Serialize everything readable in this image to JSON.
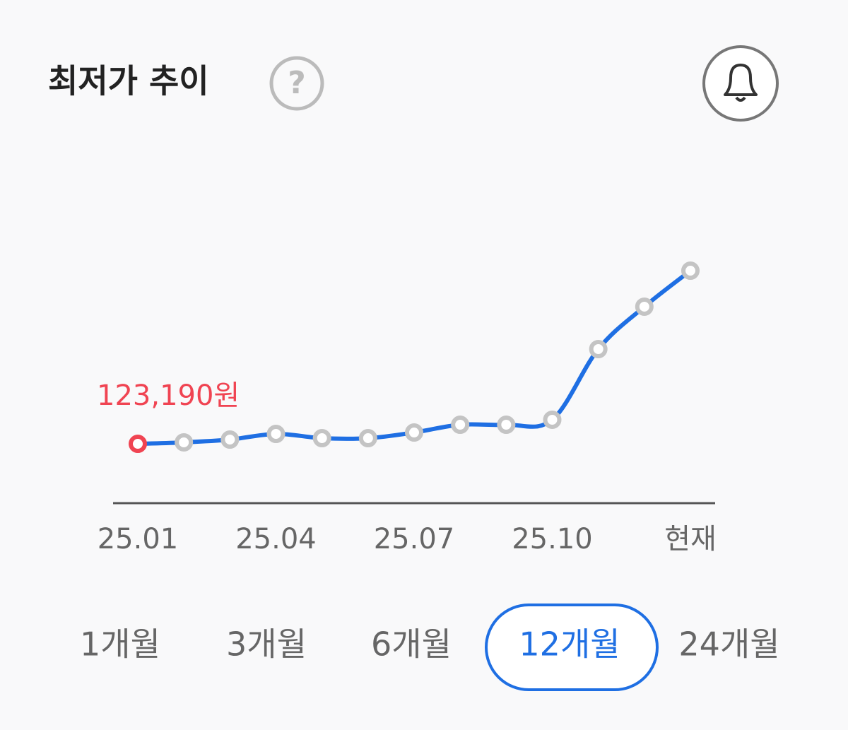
{
  "header": {
    "title": "최저가 추이"
  },
  "chart_data": {
    "type": "line",
    "categories": [
      "25.01",
      null,
      null,
      "25.04",
      null,
      null,
      "25.07",
      null,
      null,
      "25.10",
      null,
      null,
      "현재"
    ],
    "values": [
      123190,
      123760,
      124860,
      127070,
      125410,
      125410,
      127620,
      130660,
      130660,
      132600,
      160220,
      176800,
      190880
    ],
    "value_labels": [
      "123,190원",
      null,
      null,
      null,
      null,
      null,
      null,
      null,
      null,
      null,
      null,
      null,
      null
    ],
    "ylim": [
      100000,
      200000
    ],
    "color": "#1f6fe3",
    "point_color": "#c4c4c4",
    "highlight_color": "#f04452"
  },
  "periods": {
    "options": [
      "1개월",
      "3개월",
      "6개월",
      "12개월",
      "24개월"
    ],
    "selected": 3
  }
}
